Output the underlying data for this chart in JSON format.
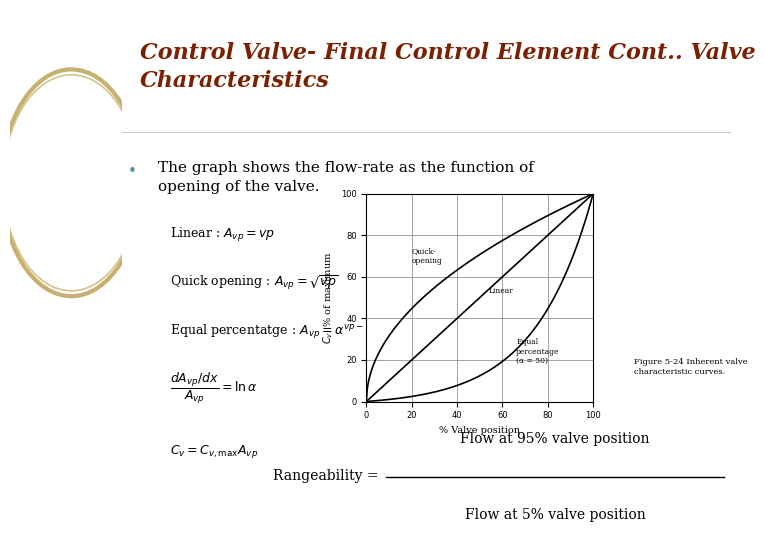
{
  "title_line1": "Control Valve- Final Control Element Cont.. Valve",
  "title_line2": "Characteristics",
  "title_color": "#7B2000",
  "title_fontsize": 16,
  "bullet_text_line1": "The graph shows the flow-rate as the function of",
  "bullet_text_line2": "opening of the valve.",
  "bullet_color": "#4a90a4",
  "bg_left_color": "#f0e6c8",
  "formula1": "Linear : $A_{vp} = vp$",
  "formula2": "Quick opening : $A_{vp} = \\sqrt{vp}$",
  "formula3": "Equal percentatge : $A_{vp} = \\alpha^{vp-1}$",
  "formula4": "$\\dfrac{dA_{vp}/dx}{A_{vp}} = \\ln\\alpha$",
  "formula5": "$C_v = C_{v,\\max} A_{vp}$",
  "graph_xlabel": "% Valve position",
  "graph_ylabel": "$C_v$, % of maximum",
  "graph_caption": "Figure 5-24 Inherent valve\ncharacteristic curves.",
  "curve_label_quick": "Quick-\nopening",
  "curve_label_linear": "Linear",
  "curve_label_equal": "Equal\npercentage\n(α = 50)",
  "rangeability_label": "Rangeability = ",
  "rangeability_num": "Flow at 95% valve position",
  "rangeability_den": "Flow at 5% valve position",
  "alpha_equal": 50
}
